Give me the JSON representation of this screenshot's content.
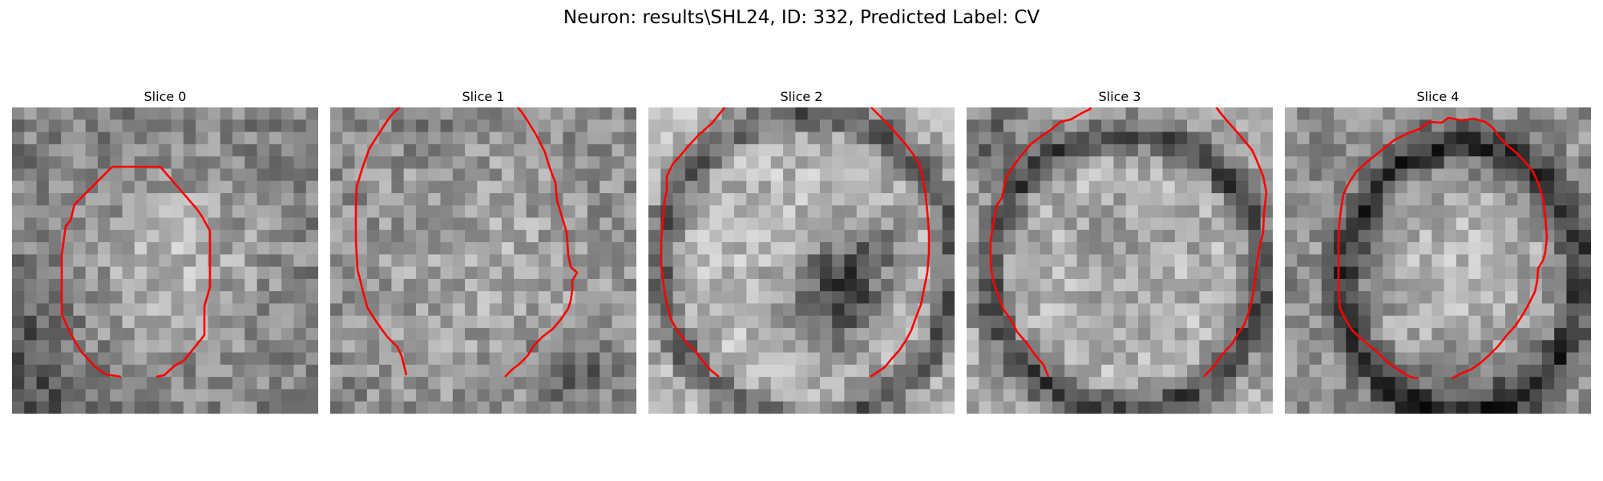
{
  "figure": {
    "title": "Neuron: results\\SHL24, ID: 332, Predicted Label: CV",
    "contour_color": "#ff0000"
  },
  "slices": [
    {
      "title": "Slice 0"
    },
    {
      "title": "Slice 1"
    },
    {
      "title": "Slice 2"
    },
    {
      "title": "Slice 3"
    },
    {
      "title": "Slice 4"
    }
  ]
}
